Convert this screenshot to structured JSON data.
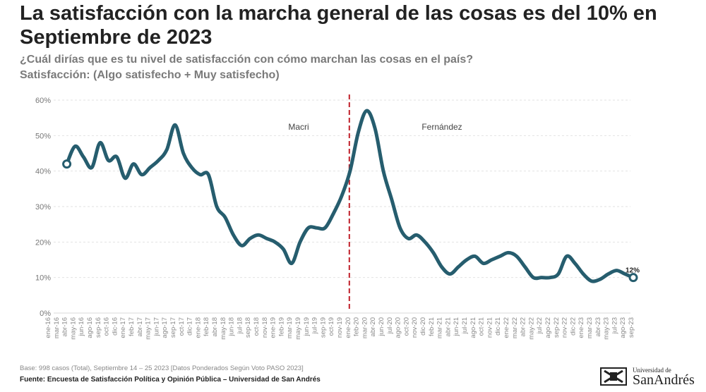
{
  "header": {
    "title": "La satisfacción con la marcha general de las cosas es del 10% en Septiembre de 2023",
    "question": "¿Cuál dirías que es tu nivel de satisfacción con cómo marchan las cosas en el país?",
    "measure": "Satisfacción: (Algo satisfecho + Muy satisfecho)"
  },
  "chart_data": {
    "type": "line",
    "title": "",
    "xlabel": "",
    "ylabel": "",
    "ylim": [
      0,
      60
    ],
    "yticks": [
      "0%",
      "10%",
      "20%",
      "30%",
      "40%",
      "50%",
      "60%"
    ],
    "grid": true,
    "line_color": "#265d6e",
    "divider_color": "#c0202a",
    "categories": [
      "ene-16",
      "mar-16",
      "abr-16",
      "may-16",
      "jun-16",
      "ago-16",
      "sep-16",
      "oct-16",
      "dic-16",
      "ene-17",
      "feb-17",
      "abr-17",
      "may-17",
      "jun-17",
      "ago-17",
      "sep-17",
      "oct-17",
      "dic-17",
      "ene-18",
      "feb-18",
      "abr-18",
      "may-18",
      "jun-18",
      "jul-18",
      "sep-18",
      "oct-18",
      "nov-18",
      "ene-19",
      "feb-19",
      "mar-19",
      "may-19",
      "jun-19",
      "jul-19",
      "sep-19",
      "oct-19",
      "nov-19",
      "ene-20",
      "feb-20",
      "mar-20",
      "abr-20",
      "jun-20",
      "jul-20",
      "ago-20",
      "oct-20",
      "nov-20",
      "dic-20",
      "feb-21",
      "mar-21",
      "abr-21",
      "jun-21",
      "jul-21",
      "ago-21",
      "oct-21",
      "nov-21",
      "dic-21",
      "ene-22",
      "mar-22",
      "abr-22",
      "may-22",
      "jul-22",
      "ago-22",
      "sep-22",
      "nov-22",
      "dic-22",
      "ene-23",
      "mar-23",
      "abr-23",
      "may-23",
      "jul-23",
      "ago-23",
      "sep-23"
    ],
    "series": [
      {
        "values": [
          null,
          null,
          42,
          47,
          44,
          41,
          48,
          43,
          44,
          38,
          42,
          39,
          41,
          43,
          46,
          53,
          45,
          41,
          39,
          39,
          30,
          27,
          22,
          19,
          21,
          22,
          21,
          20,
          18,
          14,
          20,
          24,
          24,
          24,
          28,
          33,
          40,
          51,
          57,
          52,
          40,
          32,
          24,
          21,
          22,
          20,
          17,
          13,
          11,
          13,
          15,
          16,
          14,
          15,
          16,
          17,
          16,
          13,
          10,
          10,
          10,
          11,
          16,
          14,
          11,
          9,
          9.5,
          11,
          12,
          11,
          10
        ]
      }
    ],
    "periods": [
      {
        "label": "Macri",
        "from": "abr-16",
        "to": "nov-19"
      },
      {
        "label": "Fernández",
        "from": "ene-20",
        "to": "sep-23"
      }
    ],
    "divider_at": "ene-20",
    "annotation": "12%"
  },
  "footer": {
    "base": "Base: 998 casos (Total), Septiembre 14 – 25 2023 [Datos Ponderados Según Voto PASO 2023]",
    "source": "Fuente: Encuesta de Satisfacción Política y Opinión Pública – Universidad de San Andrés"
  },
  "logo": {
    "line1": "Universidad de",
    "line2": "SanAndrés"
  }
}
